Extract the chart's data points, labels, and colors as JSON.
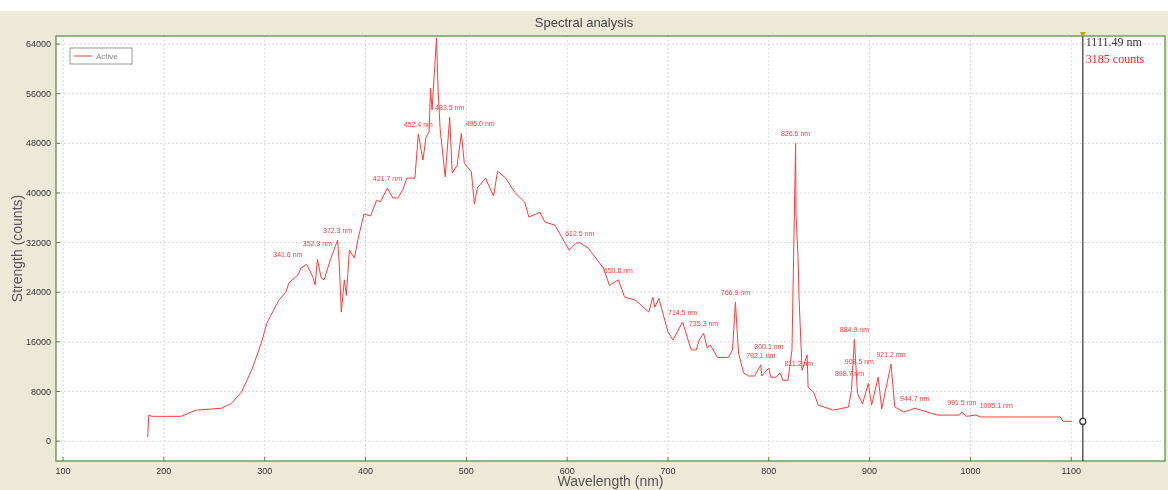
{
  "chart_data": {
    "type": "line",
    "title": "Spectral analysis",
    "xlabel": "Wavelength (nm)",
    "ylabel": "Strength (counts)",
    "xlim": [
      93,
      1193
    ],
    "xticks": [
      100,
      200,
      300,
      400,
      500,
      600,
      700,
      800,
      900,
      1000,
      1100
    ],
    "ylim": [
      -3200,
      65300
    ],
    "yticks": [
      0,
      8000,
      16000,
      24000,
      32000,
      40000,
      48000,
      56000,
      64000
    ],
    "grid": true,
    "legend": "top left",
    "series": [
      {
        "name": "Active",
        "color": "#ff3b3b",
        "x": [
          184,
          185,
          188,
          200,
          217,
          232,
          257,
          267,
          277,
          287,
          297,
          302,
          314,
          321,
          324,
          333,
          336,
          341.6,
          348,
          350,
          352.3,
          356,
          359,
          365,
          372.3,
          374,
          376,
          379,
          381,
          384,
          389,
          393,
          398.5,
          405,
          411,
          415,
          421.7,
          427,
          432,
          437,
          441,
          449,
          452.4,
          457,
          460,
          463,
          464.5,
          466,
          470.4,
          472,
          474,
          479,
          483.5,
          486,
          491,
          495,
          498,
          505,
          508,
          511,
          519,
          527,
          531,
          539,
          548,
          558,
          562,
          573,
          578,
          588,
          598,
          602,
          609,
          612.5,
          621,
          636,
          642,
          650.8,
          657,
          668,
          681,
          685,
          687,
          691,
          700,
          705,
          714.5,
          723,
          728,
          731,
          735.3,
          739,
          742,
          749,
          760,
          764,
          766.9,
          770,
          775,
          780,
          786,
          792.1,
          793,
          800.1,
          802,
          807,
          811.2,
          814,
          819,
          823,
          826.6,
          827,
          829,
          830,
          833,
          838,
          839,
          845,
          849,
          864,
          879,
          882,
          884.9,
          888,
          893,
          898.7,
          902,
          908.5,
          912,
          921.2,
          925,
          934,
          944.7,
          957,
          967,
          989,
          991.5,
          996,
          1005.1,
          1010,
          1089,
          1092,
          1100
        ],
        "values": [
          700,
          4200,
          4000,
          4000,
          4000,
          5000,
          5300,
          6100,
          7900,
          11400,
          16000,
          19000,
          22700,
          24000,
          25500,
          26800,
          27900,
          28500,
          26400,
          25200,
          29300,
          26300,
          26000,
          29200,
          32400,
          28500,
          20800,
          26000,
          23500,
          30800,
          29500,
          32900,
          36600,
          36300,
          38800,
          38600,
          40800,
          39200,
          39200,
          40500,
          42400,
          42400,
          49500,
          45300,
          49000,
          49800,
          56900,
          53400,
          65000,
          56600,
          50400,
          42600,
          52200,
          43200,
          44500,
          49600,
          44800,
          43400,
          38200,
          40800,
          42400,
          39500,
          43500,
          42400,
          40100,
          38500,
          36100,
          36900,
          35300,
          34800,
          31900,
          30800,
          31900,
          32000,
          31100,
          27900,
          25100,
          26000,
          23200,
          22700,
          20800,
          23200,
          21600,
          23000,
          17600,
          16300,
          19200,
          14700,
          14700,
          16300,
          17400,
          15000,
          15500,
          13500,
          13500,
          14700,
          22400,
          14200,
          11000,
          10500,
          10500,
          12300,
          10500,
          11800,
          10300,
          10300,
          11000,
          9800,
          9800,
          14700,
          48000,
          36600,
          29700,
          23200,
          11400,
          13900,
          8700,
          7700,
          5800,
          5000,
          5500,
          8200,
          16400,
          7700,
          6000,
          9300,
          5800,
          10300,
          5200,
          12400,
          5500,
          4700,
          5300,
          4700,
          4200,
          4200,
          4700,
          4000,
          4200,
          3900,
          3900,
          3200,
          3200
        ]
      },
      {
        "type": "scatter",
        "color": "#333333",
        "x": [
          1111.49
        ],
        "values": [
          3185
        ],
        "marker": "circle"
      }
    ],
    "ref_lines": [
      {
        "axis": "x",
        "value": 1111.49,
        "label": "1111.49 nm",
        "color": "#333333"
      }
    ],
    "annotations": [
      {
        "text": "341.6 nm",
        "x": 341.6,
        "y": 28500
      },
      {
        "text": "352.3 nm",
        "x": 352.3,
        "y": 29300
      },
      {
        "text": "372.3 nm",
        "x": 372.3,
        "y": 32400
      },
      {
        "text": "421.7 nm",
        "x": 421.7,
        "y": 40800
      },
      {
        "text": "452.4 nm",
        "x": 452.4,
        "y": 49500
      },
      {
        "text": "483.5 nm",
        "x": 483.5,
        "y": 52200
      },
      {
        "text": "495.0 nm",
        "x": 495,
        "y": 49600
      },
      {
        "text": "612.5 nm",
        "x": 612.5,
        "y": 32000
      },
      {
        "text": "650.8 nm",
        "x": 650.8,
        "y": 26000
      },
      {
        "text": "714.5 nm",
        "x": 714.5,
        "y": 19200
      },
      {
        "text": "735.3 nm",
        "x": 735.3,
        "y": 17400
      },
      {
        "text": "766.9 nm",
        "x": 766.9,
        "y": 22400
      },
      {
        "text": "792.1 nm",
        "x": 792.1,
        "y": 12300
      },
      {
        "text": "800.1 nm",
        "x": 800.1,
        "y": 11800
      },
      {
        "text": "811.2 nm",
        "x": 811.2,
        "y": 11000
      },
      {
        "text": "826.6 nm",
        "x": 826.6,
        "y": 48000
      },
      {
        "text": "884.9 nm",
        "x": 884.9,
        "y": 16400
      },
      {
        "text": "898.7 nm",
        "x": 898.7,
        "y": 9300
      },
      {
        "text": "908.5 nm",
        "x": 908.5,
        "y": 10300
      },
      {
        "text": "921.2 nm",
        "x": 921.2,
        "y": 12400
      },
      {
        "text": "944.7 nm",
        "x": 944.7,
        "y": 5300
      },
      {
        "text": "991.5 nm",
        "x": 991.5,
        "y": 4700
      },
      {
        "text": "1005.1 nm",
        "x": 1005.1,
        "y": 4200
      },
      "3185 counts"
    ]
  }
}
